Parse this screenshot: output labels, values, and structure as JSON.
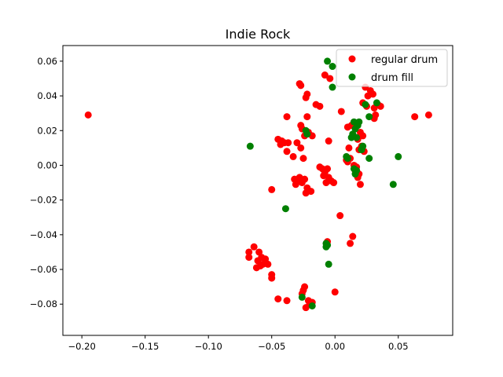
{
  "colors": {
    "regular_drum": "#ff0000",
    "drum_fill": "#008000",
    "axes": "#000000",
    "background": "#ffffff",
    "legend_border": "#cccccc"
  },
  "chart_data": {
    "type": "scatter",
    "title": "Indie Rock",
    "xlabel": "",
    "ylabel": "",
    "xlim": [
      -0.215,
      0.093
    ],
    "ylim": [
      -0.098,
      0.069
    ],
    "x_ticks": [
      -0.2,
      -0.15,
      -0.1,
      -0.05,
      0.0,
      0.05
    ],
    "x_tick_labels": [
      "−0.20",
      "−0.15",
      "−0.10",
      "−0.05",
      "0.00",
      "0.05"
    ],
    "y_ticks": [
      -0.08,
      -0.06,
      -0.04,
      -0.02,
      0.0,
      0.02,
      0.04,
      0.06
    ],
    "y_tick_labels": [
      "−0.08",
      "−0.06",
      "−0.04",
      "−0.02",
      "0.00",
      "0.02",
      "0.04",
      "0.06"
    ],
    "grid": false,
    "legend_position": "top-right",
    "series": [
      {
        "name": "regular drum",
        "color": "#ff0000",
        "points": [
          [
            -0.195,
            0.029
          ],
          [
            -0.028,
            0.047
          ],
          [
            -0.027,
            0.046
          ],
          [
            -0.022,
            0.041
          ],
          [
            -0.023,
            0.039
          ],
          [
            -0.015,
            0.035
          ],
          [
            -0.012,
            0.034
          ],
          [
            -0.008,
            0.052
          ],
          [
            -0.004,
            0.05
          ],
          [
            0.005,
            0.031
          ],
          [
            -0.038,
            0.028
          ],
          [
            -0.022,
            0.028
          ],
          [
            -0.027,
            0.023
          ],
          [
            -0.026,
            0.021
          ],
          [
            -0.021,
            0.019
          ],
          [
            -0.018,
            0.017
          ],
          [
            -0.024,
            0.017
          ],
          [
            -0.03,
            0.013
          ],
          [
            -0.027,
            0.01
          ],
          [
            -0.033,
            0.005
          ],
          [
            -0.025,
            0.004
          ],
          [
            -0.045,
            0.015
          ],
          [
            -0.042,
            0.014
          ],
          [
            -0.04,
            0.013
          ],
          [
            -0.043,
            0.012
          ],
          [
            -0.037,
            0.013
          ],
          [
            -0.038,
            0.008
          ],
          [
            -0.005,
            0.014
          ],
          [
            0.01,
            0.022
          ],
          [
            0.013,
            0.023
          ],
          [
            0.011,
            0.01
          ],
          [
            0.024,
            0.045
          ],
          [
            0.028,
            0.043
          ],
          [
            0.026,
            0.04
          ],
          [
            0.03,
            0.041
          ],
          [
            0.022,
            0.036
          ],
          [
            0.025,
            0.034
          ],
          [
            0.031,
            0.033
          ],
          [
            0.034,
            0.035
          ],
          [
            0.036,
            0.034
          ],
          [
            0.032,
            0.029
          ],
          [
            0.031,
            0.027
          ],
          [
            0.063,
            0.028
          ],
          [
            0.074,
            0.029
          ],
          [
            0.02,
            0.019
          ],
          [
            0.022,
            0.017
          ],
          [
            0.018,
            0.015
          ],
          [
            0.021,
            0.011
          ],
          [
            0.019,
            0.009
          ],
          [
            0.023,
            0.008
          ],
          [
            0.009,
            0.003
          ],
          [
            0.01,
            0.002
          ],
          [
            0.012,
            0.004
          ],
          [
            0.015,
            0.0
          ],
          [
            0.017,
            -0.001
          ],
          [
            0.016,
            -0.003
          ],
          [
            0.019,
            -0.005
          ],
          [
            0.018,
            -0.007
          ],
          [
            0.02,
            -0.011
          ],
          [
            -0.012,
            -0.001
          ],
          [
            -0.01,
            -0.002
          ],
          [
            -0.008,
            -0.004
          ],
          [
            -0.006,
            -0.002
          ],
          [
            -0.009,
            -0.006
          ],
          [
            -0.005,
            -0.007
          ],
          [
            -0.003,
            -0.009
          ],
          [
            -0.007,
            -0.01
          ],
          [
            -0.001,
            -0.01
          ],
          [
            -0.032,
            -0.008
          ],
          [
            -0.03,
            -0.009
          ],
          [
            -0.028,
            -0.007
          ],
          [
            -0.026,
            -0.01
          ],
          [
            -0.024,
            -0.008
          ],
          [
            -0.031,
            -0.011
          ],
          [
            -0.022,
            -0.013
          ],
          [
            -0.019,
            -0.015
          ],
          [
            -0.023,
            -0.016
          ],
          [
            -0.05,
            -0.014
          ],
          [
            0.004,
            -0.029
          ],
          [
            0.014,
            -0.041
          ],
          [
            0.012,
            -0.045
          ],
          [
            -0.006,
            -0.044
          ],
          [
            -0.064,
            -0.047
          ],
          [
            -0.068,
            -0.05
          ],
          [
            -0.068,
            -0.053
          ],
          [
            -0.06,
            -0.05
          ],
          [
            -0.058,
            -0.053
          ],
          [
            -0.061,
            -0.055
          ],
          [
            -0.057,
            -0.057
          ],
          [
            -0.055,
            -0.054
          ],
          [
            -0.053,
            -0.057
          ],
          [
            -0.059,
            -0.058
          ],
          [
            -0.062,
            -0.059
          ],
          [
            -0.05,
            -0.063
          ],
          [
            -0.05,
            -0.065
          ],
          [
            -0.024,
            -0.07
          ],
          [
            -0.025,
            -0.072
          ],
          [
            -0.026,
            -0.074
          ],
          [
            0.0,
            -0.073
          ],
          [
            -0.045,
            -0.077
          ],
          [
            -0.038,
            -0.078
          ],
          [
            -0.021,
            -0.078
          ],
          [
            -0.018,
            -0.079
          ],
          [
            -0.02,
            -0.08
          ],
          [
            -0.023,
            -0.082
          ]
        ]
      },
      {
        "name": "drum fill",
        "color": "#008000",
        "points": [
          [
            -0.006,
            0.06
          ],
          [
            -0.002,
            0.057
          ],
          [
            -0.002,
            0.045
          ],
          [
            0.024,
            0.035
          ],
          [
            0.033,
            0.036
          ],
          [
            0.027,
            0.028
          ],
          [
            0.015,
            0.025
          ],
          [
            0.018,
            0.023
          ],
          [
            0.019,
            0.025
          ],
          [
            0.016,
            0.021
          ],
          [
            0.014,
            0.018
          ],
          [
            0.017,
            0.016
          ],
          [
            0.013,
            0.016
          ],
          [
            -0.023,
            0.02
          ],
          [
            -0.022,
            0.018
          ],
          [
            -0.067,
            0.011
          ],
          [
            0.022,
            0.011
          ],
          [
            0.021,
            0.009
          ],
          [
            0.009,
            0.005
          ],
          [
            0.01,
            0.004
          ],
          [
            0.027,
            0.004
          ],
          [
            0.05,
            0.005
          ],
          [
            0.017,
            -0.003
          ],
          [
            0.016,
            -0.005
          ],
          [
            0.015,
            -0.002
          ],
          [
            0.046,
            -0.011
          ],
          [
            -0.039,
            -0.025
          ],
          [
            -0.007,
            -0.045
          ],
          [
            -0.006,
            -0.046
          ],
          [
            -0.007,
            -0.047
          ],
          [
            -0.005,
            -0.057
          ],
          [
            -0.026,
            -0.076
          ],
          [
            -0.018,
            -0.081
          ]
        ]
      }
    ]
  }
}
